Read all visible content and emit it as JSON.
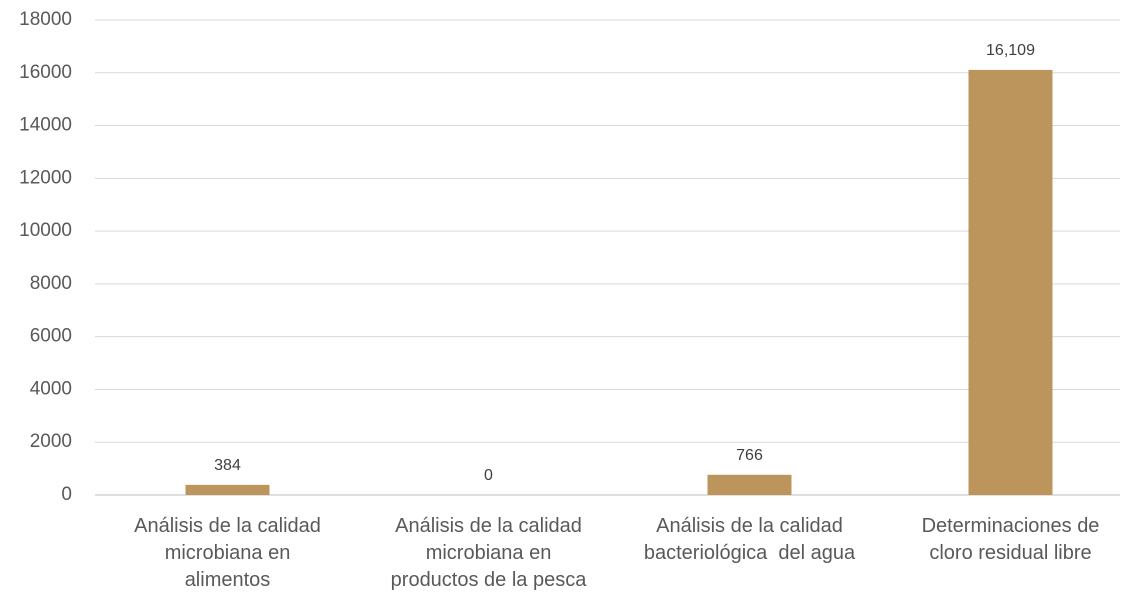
{
  "chart_data": {
    "type": "bar",
    "categories": [
      "Análisis de la calidad\nmicrobiana en\nalimentos",
      "Análisis de la calidad\nmicrobiana en\nproductos de la pesca",
      "Análisis de la calidad\nbacteriológica  del agua",
      "Determinaciones de\ncloro residual libre"
    ],
    "values": [
      384,
      0,
      766,
      16109
    ],
    "value_labels": [
      "384",
      "0",
      "766",
      "16,109"
    ],
    "color": "#bc955c",
    "ylim": [
      0,
      18000
    ],
    "yticks": [
      0,
      2000,
      4000,
      6000,
      8000,
      10000,
      12000,
      14000,
      16000,
      18000
    ],
    "grid": true
  }
}
